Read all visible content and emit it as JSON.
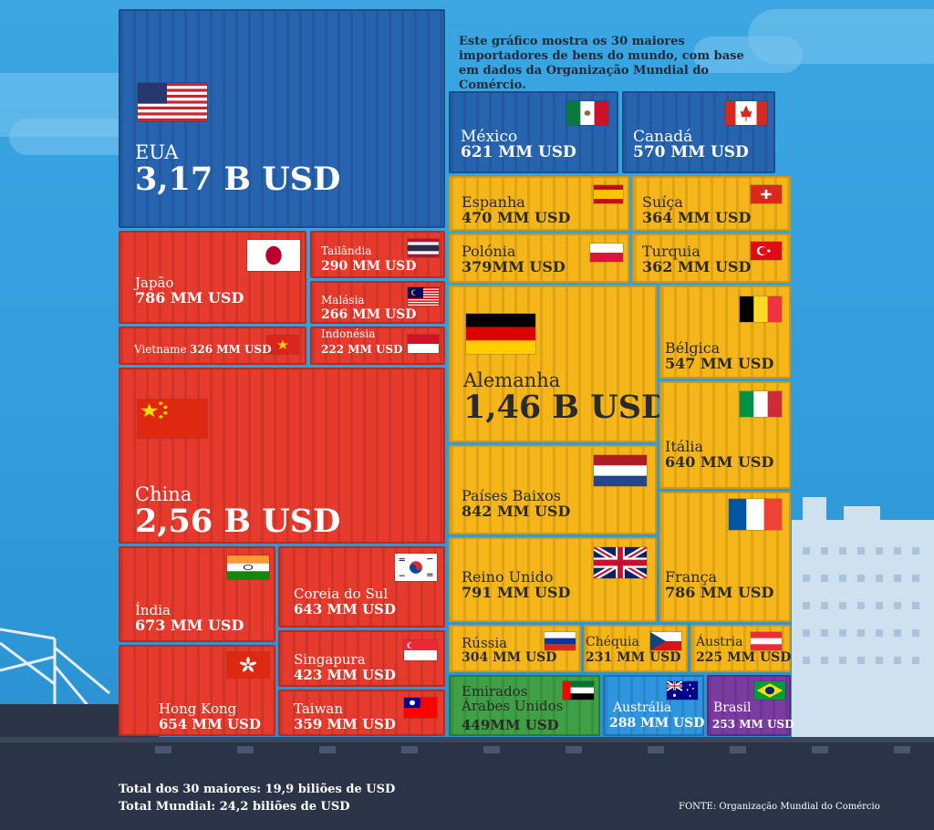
{
  "description": "Este gráfico mostra os 30 maiores importadores de bens do mundo, com base em dados da Organização Mundial do Comércio.",
  "footer": {
    "total30": "Total dos 30 maiores: 19,9 biliões de USD",
    "world": "Total Mundial: 24,2 biliões de USD",
    "source": "FONTE: Organização Mundial do Comércio"
  },
  "colors": {
    "americas_blue": "#2764b0",
    "asia_red": "#e53a2c",
    "europe_yellow": "#f6b619",
    "middle_east_green": "#3fa046",
    "oceania_lightblue": "#2f95de",
    "south_america_purple": "#7a3ca0"
  },
  "chart_data": {
    "type": "treemap",
    "unit": "USD",
    "items": [
      {
        "name": "EUA",
        "label": "3,17 B USD",
        "value_billion_usd": 3170,
        "flag": "us-flag-icon"
      },
      {
        "name": "China",
        "label": "2,56 B USD",
        "value_billion_usd": 2560,
        "flag": "china-flag-icon"
      },
      {
        "name": "Alemanha",
        "label": "1,46 B USD",
        "value_billion_usd": 1460,
        "flag": "germany-flag-icon"
      },
      {
        "name": "Países Baixos",
        "label": "842 MM USD",
        "value_billion_usd": 842,
        "flag": "netherlands-flag-icon"
      },
      {
        "name": "Reino Unido",
        "label": "791 MM USD",
        "value_billion_usd": 791,
        "flag": "uk-flag-icon"
      },
      {
        "name": "Japão",
        "label": "786 MM USD",
        "value_billion_usd": 786,
        "flag": "japan-flag-icon"
      },
      {
        "name": "França",
        "label": "786 MM USD",
        "value_billion_usd": 786,
        "flag": "france-flag-icon"
      },
      {
        "name": "Índia",
        "label": "673 MM USD",
        "value_billion_usd": 673,
        "flag": "india-flag-icon"
      },
      {
        "name": "Hong Kong",
        "label": "654 MM USD",
        "value_billion_usd": 654,
        "flag": "hongkong-flag-icon"
      },
      {
        "name": "Coreia do Sul",
        "label": "643 MM USD",
        "value_billion_usd": 643,
        "flag": "korea-flag-icon"
      },
      {
        "name": "Itália",
        "label": "640 MM USD",
        "value_billion_usd": 640,
        "flag": "italy-flag-icon"
      },
      {
        "name": "México",
        "label": "621 MM USD",
        "value_billion_usd": 621,
        "flag": "mexico-flag-icon"
      },
      {
        "name": "Canadá",
        "label": "570 MM USD",
        "value_billion_usd": 570,
        "flag": "canada-flag-icon"
      },
      {
        "name": "Bélgica",
        "label": "547 MM USD",
        "value_billion_usd": 547,
        "flag": "belgium-flag-icon"
      },
      {
        "name": "Espanha",
        "label": "470 MM USD",
        "value_billion_usd": 470,
        "flag": "spain-flag-icon"
      },
      {
        "name": "Emirados Árabes Unidos",
        "label": "449MM USD",
        "value_billion_usd": 449,
        "flag": "uae-flag-icon"
      },
      {
        "name": "Singapura",
        "label": "423 MM USD",
        "value_billion_usd": 423,
        "flag": "singapore-flag-icon"
      },
      {
        "name": "Polónia",
        "label": "379MM USD",
        "value_billion_usd": 379,
        "flag": "poland-flag-icon"
      },
      {
        "name": "Suíça",
        "label": "364 MM USD",
        "value_billion_usd": 364,
        "flag": "switzerland-flag-icon"
      },
      {
        "name": "Turquia",
        "label": "362 MM USD",
        "value_billion_usd": 362,
        "flag": "turkey-flag-icon"
      },
      {
        "name": "Taiwan",
        "label": "359 MM USD",
        "value_billion_usd": 359,
        "flag": "taiwan-flag-icon"
      },
      {
        "name": "Vietname",
        "label": "326 MM USD",
        "value_billion_usd": 326,
        "flag": "vietnam-flag-icon"
      },
      {
        "name": "Rússia",
        "label": "304 MM USD",
        "value_billion_usd": 304,
        "flag": "russia-flag-icon"
      },
      {
        "name": "Tailândia",
        "label": "290 MM USD",
        "value_billion_usd": 290,
        "flag": "thailand-flag-icon"
      },
      {
        "name": "Austrália",
        "label": "288 MM USD",
        "value_billion_usd": 288,
        "flag": "australia-flag-icon"
      },
      {
        "name": "Malásia",
        "label": "266 MM USD",
        "value_billion_usd": 266,
        "flag": "malaysia-flag-icon"
      },
      {
        "name": "Brasil",
        "label": "253 MM USD",
        "value_billion_usd": 253,
        "flag": "brazil-flag-icon"
      },
      {
        "name": "Chéquia",
        "label": "231 MM USD",
        "value_billion_usd": 231,
        "flag": "czechia-flag-icon"
      },
      {
        "name": "Áustria",
        "label": "225 MM USD",
        "value_billion_usd": 225,
        "flag": "austria-flag-icon"
      },
      {
        "name": "Indonésia",
        "label": "222 MM USD",
        "value_billion_usd": 222,
        "flag": "indonesia-flag-icon"
      }
    ]
  }
}
